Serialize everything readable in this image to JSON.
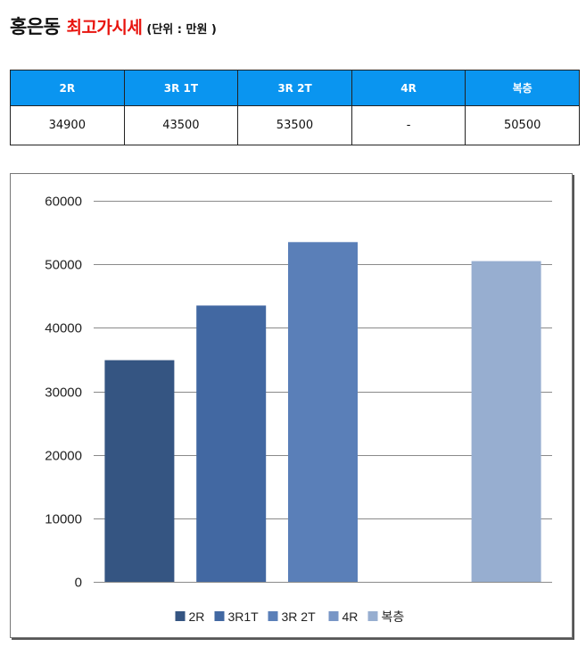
{
  "header": {
    "title_main": "홍은동",
    "title_sub": "최고가시세",
    "title_unit": "(단위 : 만원 )"
  },
  "table": {
    "columns": [
      "2R",
      "3R 1T",
      "3R 2T",
      "4R",
      "복층"
    ],
    "values": [
      "34900",
      "43500",
      "53500",
      "-",
      "50500"
    ]
  },
  "chart_data": {
    "type": "bar",
    "title": "",
    "xlabel": "",
    "ylabel": "",
    "categories": [
      ""
    ],
    "series": [
      {
        "name": "2R",
        "values": [
          34900
        ],
        "color": "#355582"
      },
      {
        "name": "3R1T",
        "values": [
          43500
        ],
        "color": "#4268a2"
      },
      {
        "name": "3R 2T",
        "values": [
          53500
        ],
        "color": "#5a7fb8"
      },
      {
        "name": "4R",
        "values": [
          null
        ],
        "color": "#7896c6"
      },
      {
        "name": "복층",
        "values": [
          50500
        ],
        "color": "#97aed0"
      }
    ],
    "ylim": [
      0,
      60000
    ],
    "yticks": [
      0,
      10000,
      20000,
      30000,
      40000,
      50000,
      60000
    ],
    "grid": true,
    "legend_position": "bottom"
  }
}
